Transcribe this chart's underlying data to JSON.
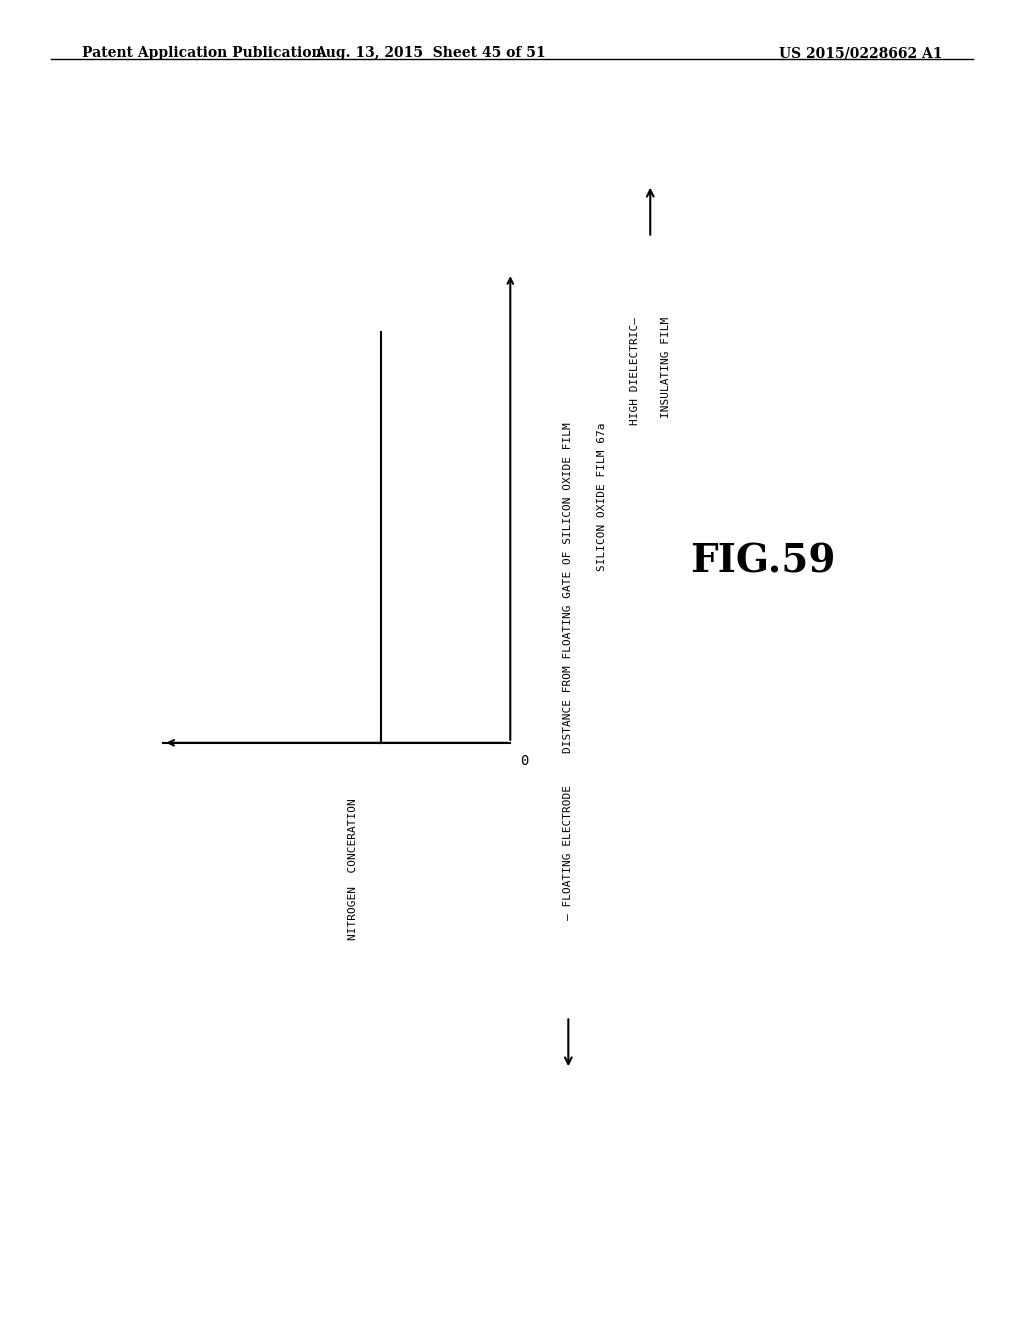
{
  "background_color": "#ffffff",
  "header_left": "Patent Application Publication",
  "header_center": "Aug. 13, 2015  Sheet 45 of 51",
  "header_right": "US 2015/0228662 A1",
  "header_fontsize": 10,
  "fig_label": "FIG.59",
  "fig_label_fontsize": 28,
  "y_axis_label": "NITROGEN  CONCERATION",
  "x_axis_label": "DISTANCE FROM FLOATING GATE OF SILICON OXIDE FILM",
  "origin_label": "0",
  "silicon_oxide_label": "SILICON OXIDE FILM 67a",
  "floating_electrode_label": "— FLOATING ELECTRODE",
  "high_dielectric_label": "HIGH DIELECTRIC—",
  "insulating_film_label": "INSULATING FILM",
  "mono_fontsize": 8
}
